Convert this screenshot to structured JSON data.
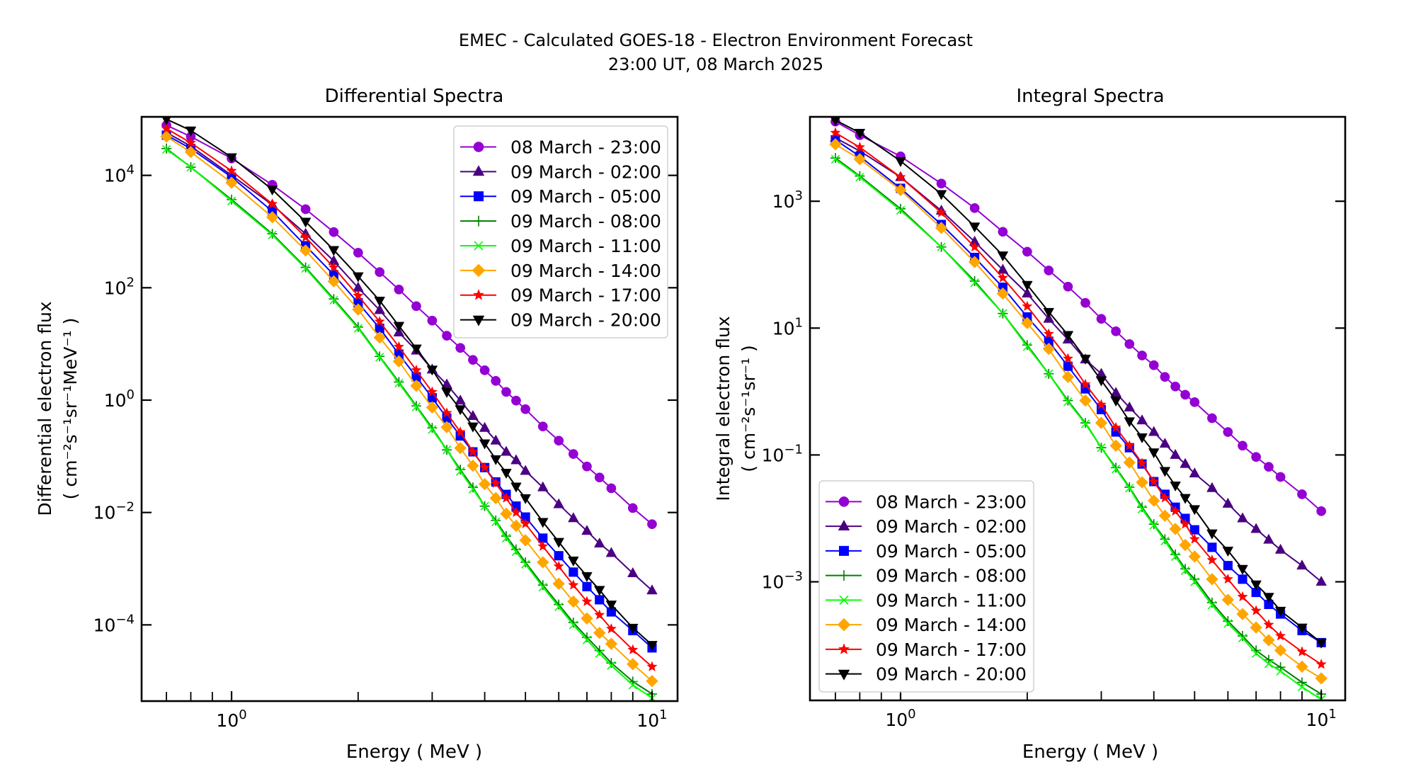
{
  "figure": {
    "title_line1": "EMEC - Calculated GOES-18 - Electron Environment Forecast",
    "title_line2": "23:00 UT, 08 March 2025"
  },
  "chart_data": [
    {
      "type": "line",
      "title": "Differential Spectra",
      "xlabel": "Energy ( MeV )",
      "ylabel": "Differential electron flux",
      "ylabel_units": "( cm⁻²s⁻¹sr⁻¹MeV⁻¹ )",
      "xscale": "log",
      "yscale": "log",
      "xlim": [
        0.611,
        11.5
      ],
      "ylim": [
        4.4e-06,
        110000.0
      ],
      "xticks": [
        {
          "value": 1,
          "base": "10",
          "exp": "0"
        },
        {
          "value": 10,
          "base": "10",
          "exp": "1"
        }
      ],
      "xminor": [
        0.7,
        0.8,
        0.9,
        2,
        3,
        4,
        5,
        6,
        7,
        8,
        9
      ],
      "yticks": [
        {
          "value": 10000.0,
          "base": "10",
          "exp": "4"
        },
        {
          "value": 100.0,
          "base": "10",
          "exp": "2"
        },
        {
          "value": 1,
          "base": "10",
          "exp": "0"
        },
        {
          "value": 0.01,
          "base": "10",
          "exp": "−2"
        },
        {
          "value": 0.0001,
          "base": "10",
          "exp": "−4"
        }
      ],
      "grid": false,
      "legend_position": "upper-right",
      "x": [
        0.7,
        0.8,
        1.0,
        1.25,
        1.5,
        1.75,
        2.0,
        2.25,
        2.5,
        2.75,
        3.0,
        3.25,
        3.5,
        3.75,
        4.0,
        4.25,
        4.5,
        4.75,
        5.0,
        5.5,
        6.0,
        6.5,
        7.0,
        7.5,
        8.0,
        9.0,
        10.0
      ],
      "series": [
        {
          "name": "08 March - 23:00",
          "color": "#9400D3",
          "marker": "circle",
          "values": [
            78000.0,
            49000.0,
            20000.0,
            6800.0,
            2500.0,
            980.0,
            420.0,
            190.0,
            93,
            47,
            26,
            14,
            8.5,
            5.2,
            3.4,
            2.2,
            1.4,
            0.98,
            0.69,
            0.34,
            0.19,
            0.11,
            0.066,
            0.042,
            0.027,
            0.012,
            0.0062
          ]
        },
        {
          "name": "09 March - 02:00",
          "color": "#4B0082",
          "marker": "triangle-up",
          "values": [
            58000.0,
            33000.0,
            10000.0,
            3000.0,
            910.0,
            300.0,
            100.0,
            40,
            16,
            7.6,
            3.5,
            1.9,
            0.98,
            0.52,
            0.32,
            0.19,
            0.12,
            0.085,
            0.055,
            0.028,
            0.014,
            0.0079,
            0.0047,
            0.0028,
            0.0019,
            0.00083,
            0.00041
          ]
        },
        {
          "name": "09 March - 05:00",
          "color": "#0000FF",
          "marker": "square",
          "values": [
            52000.0,
            30000.0,
            9300.0,
            2300.0,
            560.0,
            170.0,
            54,
            19,
            6.6,
            2.6,
            1.1,
            0.48,
            0.23,
            0.12,
            0.063,
            0.035,
            0.021,
            0.013,
            0.0083,
            0.0035,
            0.0017,
            0.00087,
            0.00048,
            0.00028,
            0.00017,
            7.9e-05,
            3.9e-05
          ]
        },
        {
          "name": "09 March - 08:00",
          "color": "#008000",
          "marker": "plus",
          "values": [
            30000.0,
            14000.0,
            3700.0,
            910.0,
            230.0,
            63,
            20,
            6.0,
            2.1,
            0.79,
            0.32,
            0.13,
            0.058,
            0.028,
            0.013,
            0.0072,
            0.0038,
            0.0022,
            0.0013,
            0.00051,
            0.00023,
            0.00011,
            6e-05,
            3.5e-05,
            2.1e-05,
            9.8e-06,
            5.9e-06
          ]
        },
        {
          "name": "09 March - 11:00",
          "color": "#00FF00",
          "marker": "x",
          "values": [
            29000.0,
            14000.0,
            3500.0,
            870.0,
            220.0,
            60,
            19,
            5.8,
            2.0,
            0.76,
            0.3,
            0.13,
            0.054,
            0.026,
            0.013,
            0.0068,
            0.0035,
            0.002,
            0.0012,
            0.00047,
            0.00021,
            0.0001,
            5.4e-05,
            3.1e-05,
            1.9e-05,
            8.5e-06,
            5e-06
          ]
        },
        {
          "name": "09 March - 14:00",
          "color": "#FFA500",
          "marker": "diamond",
          "values": [
            49000.0,
            26000.0,
            7400.0,
            1800.0,
            460.0,
            130.0,
            41,
            13,
            4.9,
            1.8,
            0.74,
            0.33,
            0.14,
            0.068,
            0.032,
            0.018,
            0.0095,
            0.0058,
            0.0032,
            0.0013,
            0.00054,
            0.00026,
            0.00013,
            7.2e-05,
            4.6e-05,
            2e-05,
            1e-05
          ]
        },
        {
          "name": "09 March - 17:00",
          "color": "#FF0000",
          "marker": "star",
          "values": [
            68000.0,
            38000.0,
            12000.0,
            3100.0,
            790.0,
            230.0,
            72,
            25,
            8.9,
            3.4,
            1.4,
            0.59,
            0.27,
            0.12,
            0.063,
            0.033,
            0.018,
            0.01,
            0.0063,
            0.0025,
            0.0011,
            0.00051,
            0.00026,
            0.00015,
            8.5e-05,
            3.6e-05,
            1.8e-05
          ]
        },
        {
          "name": "09 March - 20:00",
          "color": "#000000",
          "marker": "triangle-down",
          "values": [
            100000.0,
            63000.0,
            21000.0,
            5600.0,
            1500.0,
            470.0,
            160.0,
            59,
            21,
            8.3,
            3.5,
            1.4,
            0.69,
            0.34,
            0.17,
            0.089,
            0.051,
            0.029,
            0.018,
            0.0068,
            0.003,
            0.0014,
            0.00074,
            0.00042,
            0.00023,
            8.9e-05,
            4.4e-05
          ]
        }
      ]
    },
    {
      "type": "line",
      "title": "Integral Spectra",
      "xlabel": "Energy ( MeV )",
      "ylabel": "Integral electron flux",
      "ylabel_units": "( cm⁻²s⁻¹sr⁻¹ )",
      "xscale": "log",
      "yscale": "log",
      "xlim": [
        0.609,
        11.4
      ],
      "ylim": [
        1.35e-05,
        21400.0
      ],
      "xticks": [
        {
          "value": 1,
          "base": "10",
          "exp": "0"
        },
        {
          "value": 10,
          "base": "10",
          "exp": "1"
        }
      ],
      "xminor": [
        0.7,
        0.8,
        0.9,
        2,
        3,
        4,
        5,
        6,
        7,
        8,
        9
      ],
      "yticks": [
        {
          "value": 1000.0,
          "base": "10",
          "exp": "3"
        },
        {
          "value": 10.0,
          "base": "10",
          "exp": "1"
        },
        {
          "value": 0.1,
          "base": "10",
          "exp": "−1"
        },
        {
          "value": 0.001,
          "base": "10",
          "exp": "−3"
        }
      ],
      "grid": false,
      "legend_position": "lower-left",
      "x": [
        0.7,
        0.8,
        1.0,
        1.25,
        1.5,
        1.75,
        2.0,
        2.25,
        2.5,
        2.75,
        3.0,
        3.25,
        3.5,
        3.75,
        4.0,
        4.25,
        4.5,
        4.75,
        5.0,
        5.5,
        6.0,
        6.5,
        7.0,
        7.5,
        8.0,
        9.0,
        10.0
      ],
      "series": [
        {
          "name": "08 March - 23:00",
          "color": "#9400D3",
          "marker": "circle",
          "values": [
            18000.0,
            11000.0,
            5100.0,
            1900.0,
            780.0,
            330.0,
            160.0,
            81,
            45,
            25,
            14,
            8.9,
            5.6,
            3.7,
            2.6,
            1.7,
            1.2,
            0.89,
            0.68,
            0.38,
            0.23,
            0.14,
            0.093,
            0.065,
            0.045,
            0.024,
            0.013
          ]
        },
        {
          "name": "09 March - 02:00",
          "color": "#4B0082",
          "marker": "triangle-up",
          "values": [
            10000.0,
            6200.0,
            2400.0,
            710.0,
            230.0,
            83,
            35,
            14,
            6.6,
            3.2,
            1.9,
            0.95,
            0.56,
            0.35,
            0.23,
            0.15,
            0.1,
            0.072,
            0.051,
            0.03,
            0.017,
            0.01,
            0.0068,
            0.0046,
            0.0032,
            0.0018,
            0.001
          ]
        },
        {
          "name": "09 March - 05:00",
          "color": "#0000FF",
          "marker": "square",
          "values": [
            9300.0,
            5100.0,
            1600.0,
            430.0,
            130.0,
            44,
            15,
            6.2,
            2.5,
            1.1,
            0.52,
            0.23,
            0.13,
            0.072,
            0.038,
            0.024,
            0.015,
            0.01,
            0.0066,
            0.0035,
            0.0018,
            0.0011,
            0.00068,
            0.00044,
            0.00031,
            0.00017,
            0.00011
          ]
        },
        {
          "name": "09 March - 08:00",
          "color": "#008000",
          "marker": "plus",
          "values": [
            4800.0,
            2500.0,
            760.0,
            190.0,
            55,
            17,
            5.4,
            1.9,
            0.72,
            0.32,
            0.13,
            0.063,
            0.031,
            0.015,
            0.0081,
            0.0047,
            0.0027,
            0.0016,
            0.0011,
            0.00047,
            0.00024,
            0.00014,
            8.3e-05,
            5.9e-05,
            4.5e-05,
            2.6e-05,
            1.7e-05
          ]
        },
        {
          "name": "09 March - 11:00",
          "color": "#00FF00",
          "marker": "x",
          "values": [
            4600.0,
            2400.0,
            720.0,
            190.0,
            52,
            17,
            5.1,
            1.9,
            0.69,
            0.31,
            0.13,
            0.06,
            0.03,
            0.014,
            0.0078,
            0.0044,
            0.0025,
            0.0015,
            0.001,
            0.00043,
            0.00022,
            0.00013,
            7.4e-05,
            5.1e-05,
            3.9e-05,
            2.2e-05,
            1.4e-05
          ]
        },
        {
          "name": "09 March - 14:00",
          "color": "#FFA500",
          "marker": "diamond",
          "values": [
            7900.0,
            4600.0,
            1500.0,
            380.0,
            110.0,
            35,
            12,
            4.7,
            1.7,
            0.72,
            0.32,
            0.14,
            0.076,
            0.037,
            0.019,
            0.011,
            0.0068,
            0.0038,
            0.0025,
            0.0011,
            0.00052,
            0.00031,
            0.00019,
            0.00012,
            8.3e-05,
            4.6e-05,
            3e-05
          ]
        },
        {
          "name": "09 March - 17:00",
          "color": "#FF0000",
          "marker": "star",
          "values": [
            12000.0,
            7100.0,
            2400.0,
            660.0,
            190.0,
            62,
            22,
            8.1,
            3.3,
            1.3,
            0.62,
            0.27,
            0.14,
            0.074,
            0.038,
            0.021,
            0.013,
            0.0081,
            0.0047,
            0.0022,
            0.0011,
            0.00058,
            0.00035,
            0.00021,
            0.00014,
            7.9e-05,
            5e-05
          ]
        },
        {
          "name": "09 March - 20:00",
          "color": "#000000",
          "marker": "triangle-down",
          "values": [
            19000.0,
            12000.0,
            4300.0,
            1300.0,
            400.0,
            140.0,
            48,
            18,
            7.8,
            3.3,
            1.5,
            0.72,
            0.34,
            0.19,
            0.11,
            0.056,
            0.033,
            0.021,
            0.014,
            0.0058,
            0.0031,
            0.0016,
            0.00091,
            0.00058,
            0.00035,
            0.00019,
            0.00011
          ]
        }
      ]
    }
  ]
}
